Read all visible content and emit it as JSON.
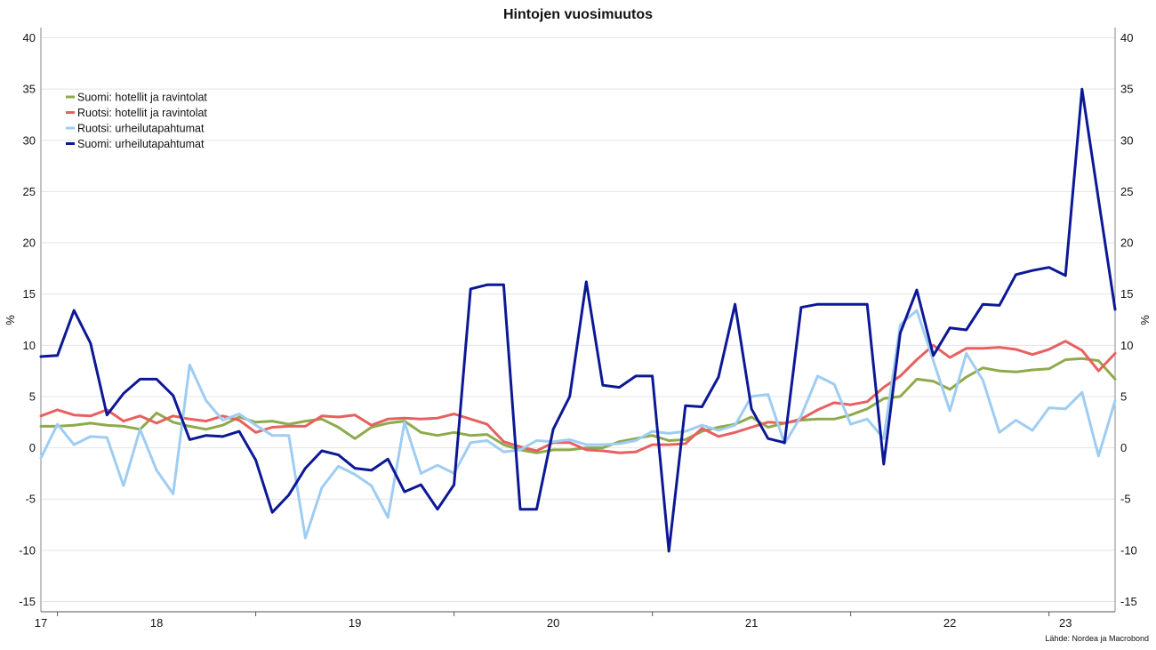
{
  "chart_data": {
    "type": "line",
    "title": "Hintojen vuosimuutos",
    "ylabel_left": "%",
    "ylabel_right": "%",
    "source": "Lähde: Nordea ja Macrobond",
    "ylim": [
      -16,
      41
    ],
    "yticks": [
      40,
      35,
      30,
      25,
      20,
      15,
      10,
      5,
      0,
      -5,
      -10,
      -15
    ],
    "grid": true,
    "legend_placement": "top-left",
    "x_start": "2017-12",
    "x_end": "2023-04",
    "xlim": [
      "2017-12",
      "2023-05"
    ],
    "x_tick_labels": [
      {
        "label": "17",
        "at": "2017-12"
      },
      {
        "label": "18",
        "at": "2018-07"
      },
      {
        "label": "19",
        "at": "2019-07"
      },
      {
        "label": "20",
        "at": "2020-07"
      },
      {
        "label": "21",
        "at": "2021-07"
      },
      {
        "label": "22",
        "at": "2022-07"
      },
      {
        "label": "23",
        "at": "2023-02"
      }
    ],
    "x_minor_ticks": [
      "2018-01",
      "2019-01",
      "2020-01",
      "2021-01",
      "2022-01",
      "2023-01"
    ],
    "series": [
      {
        "name": "Suomi: hotellit ja ravintolat",
        "color": "#8faa4c",
        "values": [
          2.1,
          2.1,
          2.2,
          2.4,
          2.2,
          2.1,
          1.8,
          3.4,
          2.5,
          2.1,
          1.8,
          2.2,
          3.0,
          2.5,
          2.6,
          2.3,
          2.6,
          2.8,
          2.0,
          0.9,
          2.0,
          2.4,
          2.6,
          1.5,
          1.2,
          1.5,
          1.2,
          1.3,
          0.3,
          -0.2,
          -0.5,
          -0.2,
          -0.2,
          0.0,
          0.0,
          0.6,
          0.9,
          1.2,
          0.7,
          0.8,
          1.6,
          2.0,
          2.3,
          3.0,
          2.0,
          2.4,
          2.7,
          2.8,
          2.8,
          3.2,
          3.8,
          4.8,
          5.0,
          6.7,
          6.5,
          5.7,
          6.9,
          7.8,
          7.5,
          7.4,
          7.6,
          7.7,
          8.6,
          8.7,
          8.5,
          6.7
        ]
      },
      {
        "name": "Ruotsi: hotellit ja ravintolat",
        "color": "#e86060",
        "values": [
          3.1,
          3.7,
          3.2,
          3.1,
          3.7,
          2.6,
          3.1,
          2.4,
          3.1,
          2.8,
          2.6,
          3.1,
          2.7,
          1.5,
          2.0,
          2.1,
          2.1,
          3.1,
          3.0,
          3.2,
          2.2,
          2.8,
          2.9,
          2.8,
          2.9,
          3.3,
          2.8,
          2.3,
          0.6,
          0.1,
          -0.3,
          0.5,
          0.5,
          -0.2,
          -0.3,
          -0.5,
          -0.4,
          0.3,
          0.3,
          0.4,
          1.9,
          1.1,
          1.5,
          2.0,
          2.5,
          2.4,
          2.8,
          3.7,
          4.4,
          4.2,
          4.5,
          5.9,
          7.0,
          8.6,
          10.0,
          8.8,
          9.7,
          9.7,
          9.8,
          9.6,
          9.1,
          9.6,
          10.4,
          9.5,
          7.5,
          9.2
        ]
      },
      {
        "name": "Ruotsi: urheilutapahtumat",
        "color": "#9fcdf2",
        "values": [
          -1.0,
          2.3,
          0.3,
          1.1,
          1.0,
          -3.7,
          1.8,
          -2.2,
          -4.5,
          8.1,
          4.6,
          2.7,
          3.3,
          2.2,
          1.2,
          1.2,
          -8.8,
          -3.9,
          -1.8,
          -2.6,
          -3.7,
          -6.8,
          2.5,
          -2.5,
          -1.7,
          -2.5,
          0.5,
          0.7,
          -0.4,
          -0.2,
          0.7,
          0.6,
          0.8,
          0.3,
          0.3,
          0.4,
          0.7,
          1.6,
          1.4,
          1.6,
          2.2,
          1.7,
          2.2,
          5.0,
          5.2,
          0.4,
          3.1,
          7.0,
          6.2,
          2.3,
          2.8,
          0.9,
          12.0,
          13.4,
          8.5,
          3.6,
          9.2,
          6.6,
          1.5,
          2.7,
          1.7,
          3.9,
          3.8,
          5.4,
          -0.8,
          4.6
        ]
      },
      {
        "name": "Suomi: urheilutapahtumat",
        "color": "#0c1896",
        "values": [
          8.9,
          9.0,
          13.4,
          10.2,
          3.2,
          5.3,
          6.7,
          6.7,
          5.1,
          0.8,
          1.2,
          1.1,
          1.6,
          -1.2,
          -6.3,
          -4.6,
          -2.0,
          -0.3,
          -0.7,
          -2.0,
          -2.2,
          -1.1,
          -4.3,
          -3.6,
          -6.0,
          -3.6,
          15.5,
          15.9,
          15.9,
          -6.0,
          -6.0,
          1.8,
          5.0,
          16.2,
          6.1,
          5.9,
          7.0,
          7.0,
          -10.1,
          4.1,
          4.0,
          6.9,
          14.0,
          3.8,
          0.9,
          0.5,
          13.7,
          14.0,
          14.0,
          14.0,
          14.0,
          -1.6,
          11.2,
          15.4,
          9.0,
          11.7,
          11.5,
          14.0,
          13.9,
          16.9,
          17.3,
          17.6,
          16.8,
          35.0,
          24.2,
          13.5
        ]
      }
    ]
  }
}
